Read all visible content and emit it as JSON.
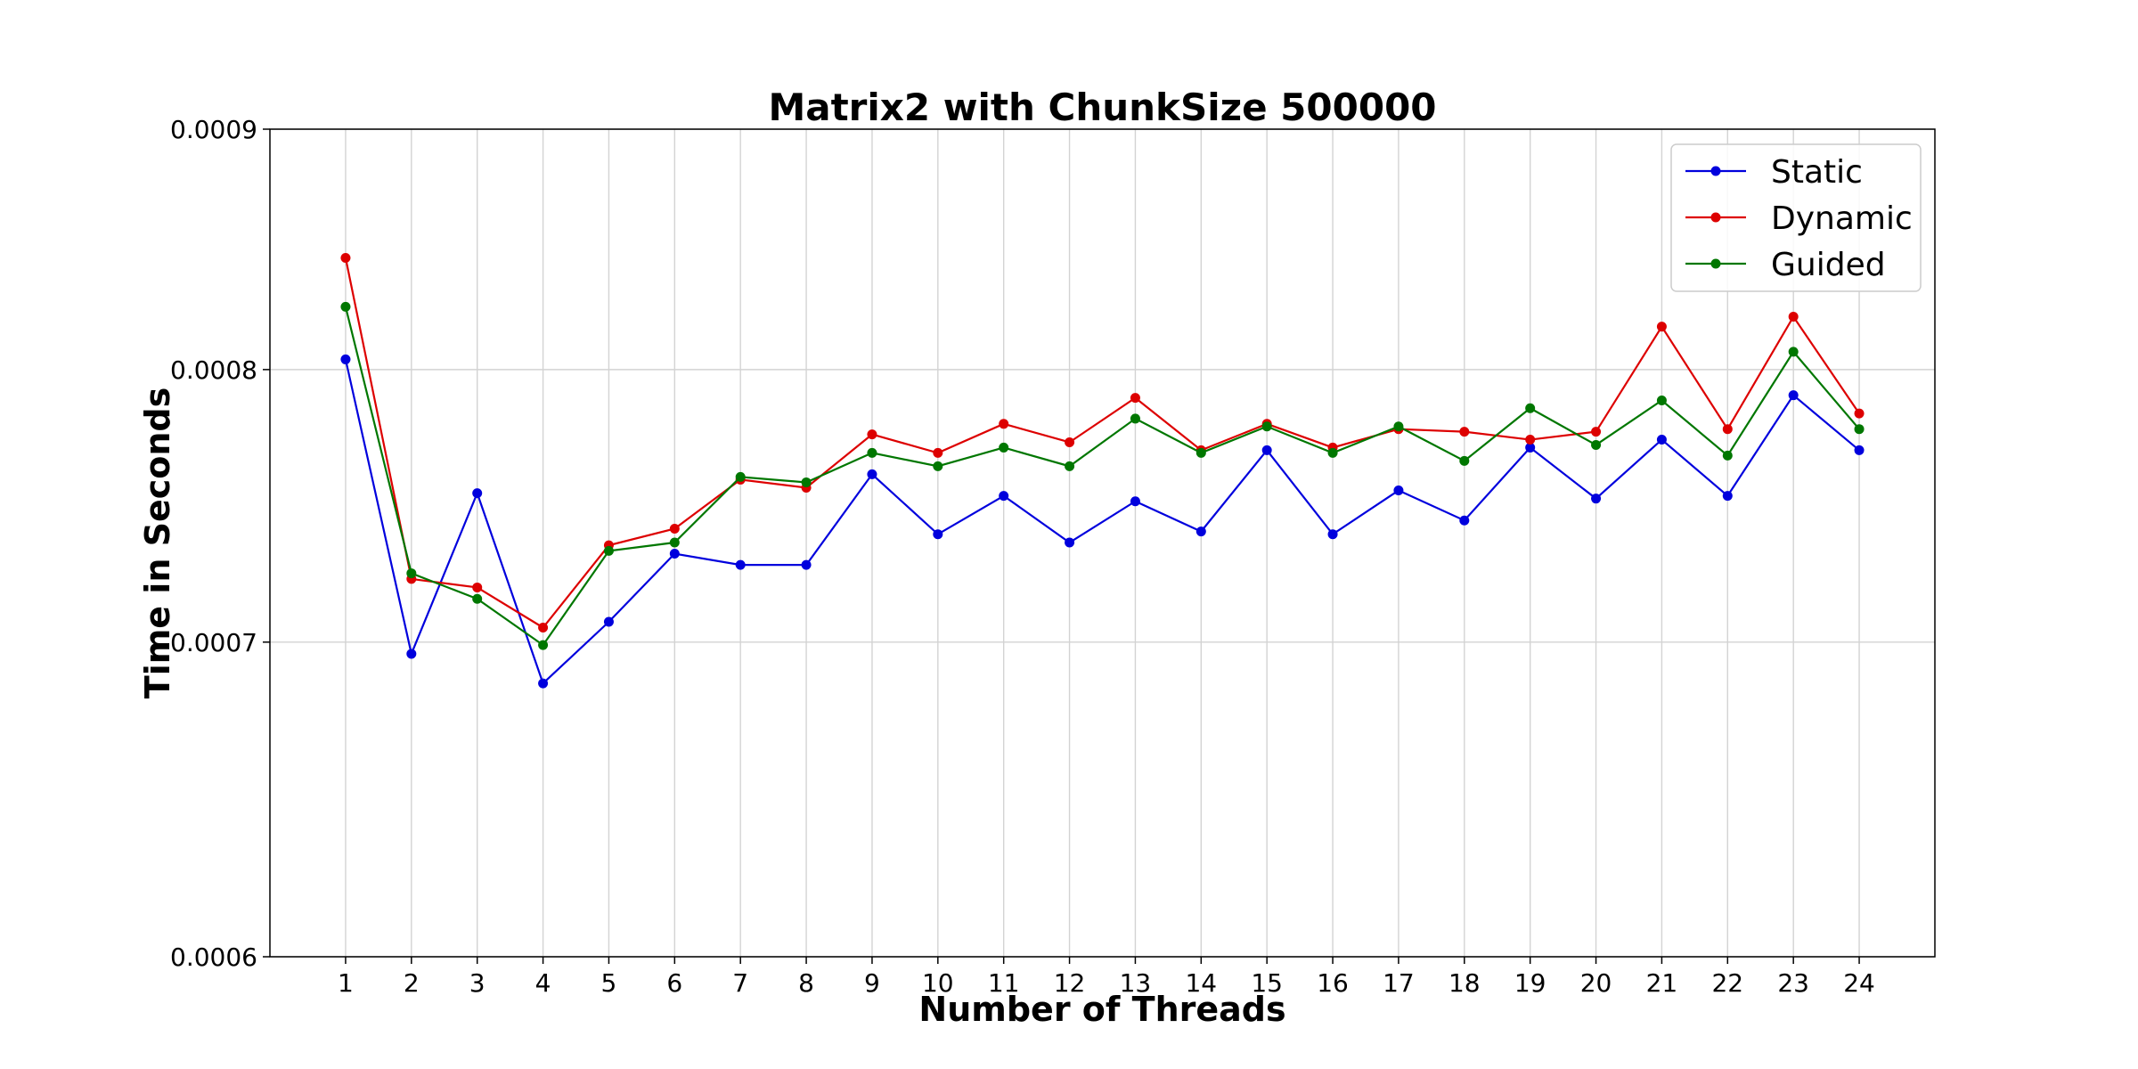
{
  "chart_data": {
    "type": "line",
    "title": "Matrix2 with ChunkSize 500000",
    "xlabel": "Number of Threads",
    "ylabel": "Time in Seconds",
    "x": [
      1,
      2,
      3,
      4,
      5,
      6,
      7,
      8,
      9,
      10,
      11,
      12,
      13,
      14,
      15,
      16,
      17,
      18,
      19,
      20,
      21,
      22,
      23,
      24
    ],
    "xticks": [
      "1",
      "2",
      "3",
      "4",
      "5",
      "6",
      "7",
      "8",
      "9",
      "10",
      "11",
      "12",
      "13",
      "14",
      "15",
      "16",
      "17",
      "18",
      "19",
      "20",
      "21",
      "22",
      "23",
      "24"
    ],
    "yticks": [
      0.0006,
      0.0007,
      0.0008,
      0.0009
    ],
    "ytick_labels": [
      "0.0006",
      "0.0007",
      "0.0008",
      "0.0009"
    ],
    "ylim": [
      0.0006,
      0.0009
    ],
    "yscale": "log",
    "xlim": [
      -0.15,
      25.15
    ],
    "grid": true,
    "legend_position": "top-right",
    "series": [
      {
        "name": "Static",
        "color": "#0000dd",
        "values": [
          0.000804,
          0.000696,
          0.000753,
          0.000686,
          0.000707,
          0.000731,
          0.000727,
          0.000727,
          0.00076,
          0.000738,
          0.000752,
          0.000735,
          0.00075,
          0.000739,
          0.000769,
          0.000738,
          0.000754,
          0.000743,
          0.00077,
          0.000751,
          0.000773,
          0.000752,
          0.00079,
          0.000769
        ]
      },
      {
        "name": "Dynamic",
        "color": "#dd0000",
        "values": [
          0.000845,
          0.000722,
          0.000719,
          0.000705,
          0.000734,
          0.00074,
          0.000758,
          0.000755,
          0.000775,
          0.000768,
          0.000779,
          0.000772,
          0.000789,
          0.000769,
          0.000779,
          0.00077,
          0.000777,
          0.000776,
          0.000773,
          0.000776,
          0.000817,
          0.000777,
          0.000821,
          0.000783
        ]
      },
      {
        "name": "Guided",
        "color": "#007700",
        "values": [
          0.000825,
          0.000724,
          0.000715,
          0.000699,
          0.000732,
          0.000735,
          0.000759,
          0.000757,
          0.000768,
          0.000763,
          0.00077,
          0.000763,
          0.000781,
          0.000768,
          0.000778,
          0.000768,
          0.000778,
          0.000765,
          0.000785,
          0.000771,
          0.000788,
          0.000767,
          0.000807,
          0.000777
        ]
      }
    ]
  }
}
